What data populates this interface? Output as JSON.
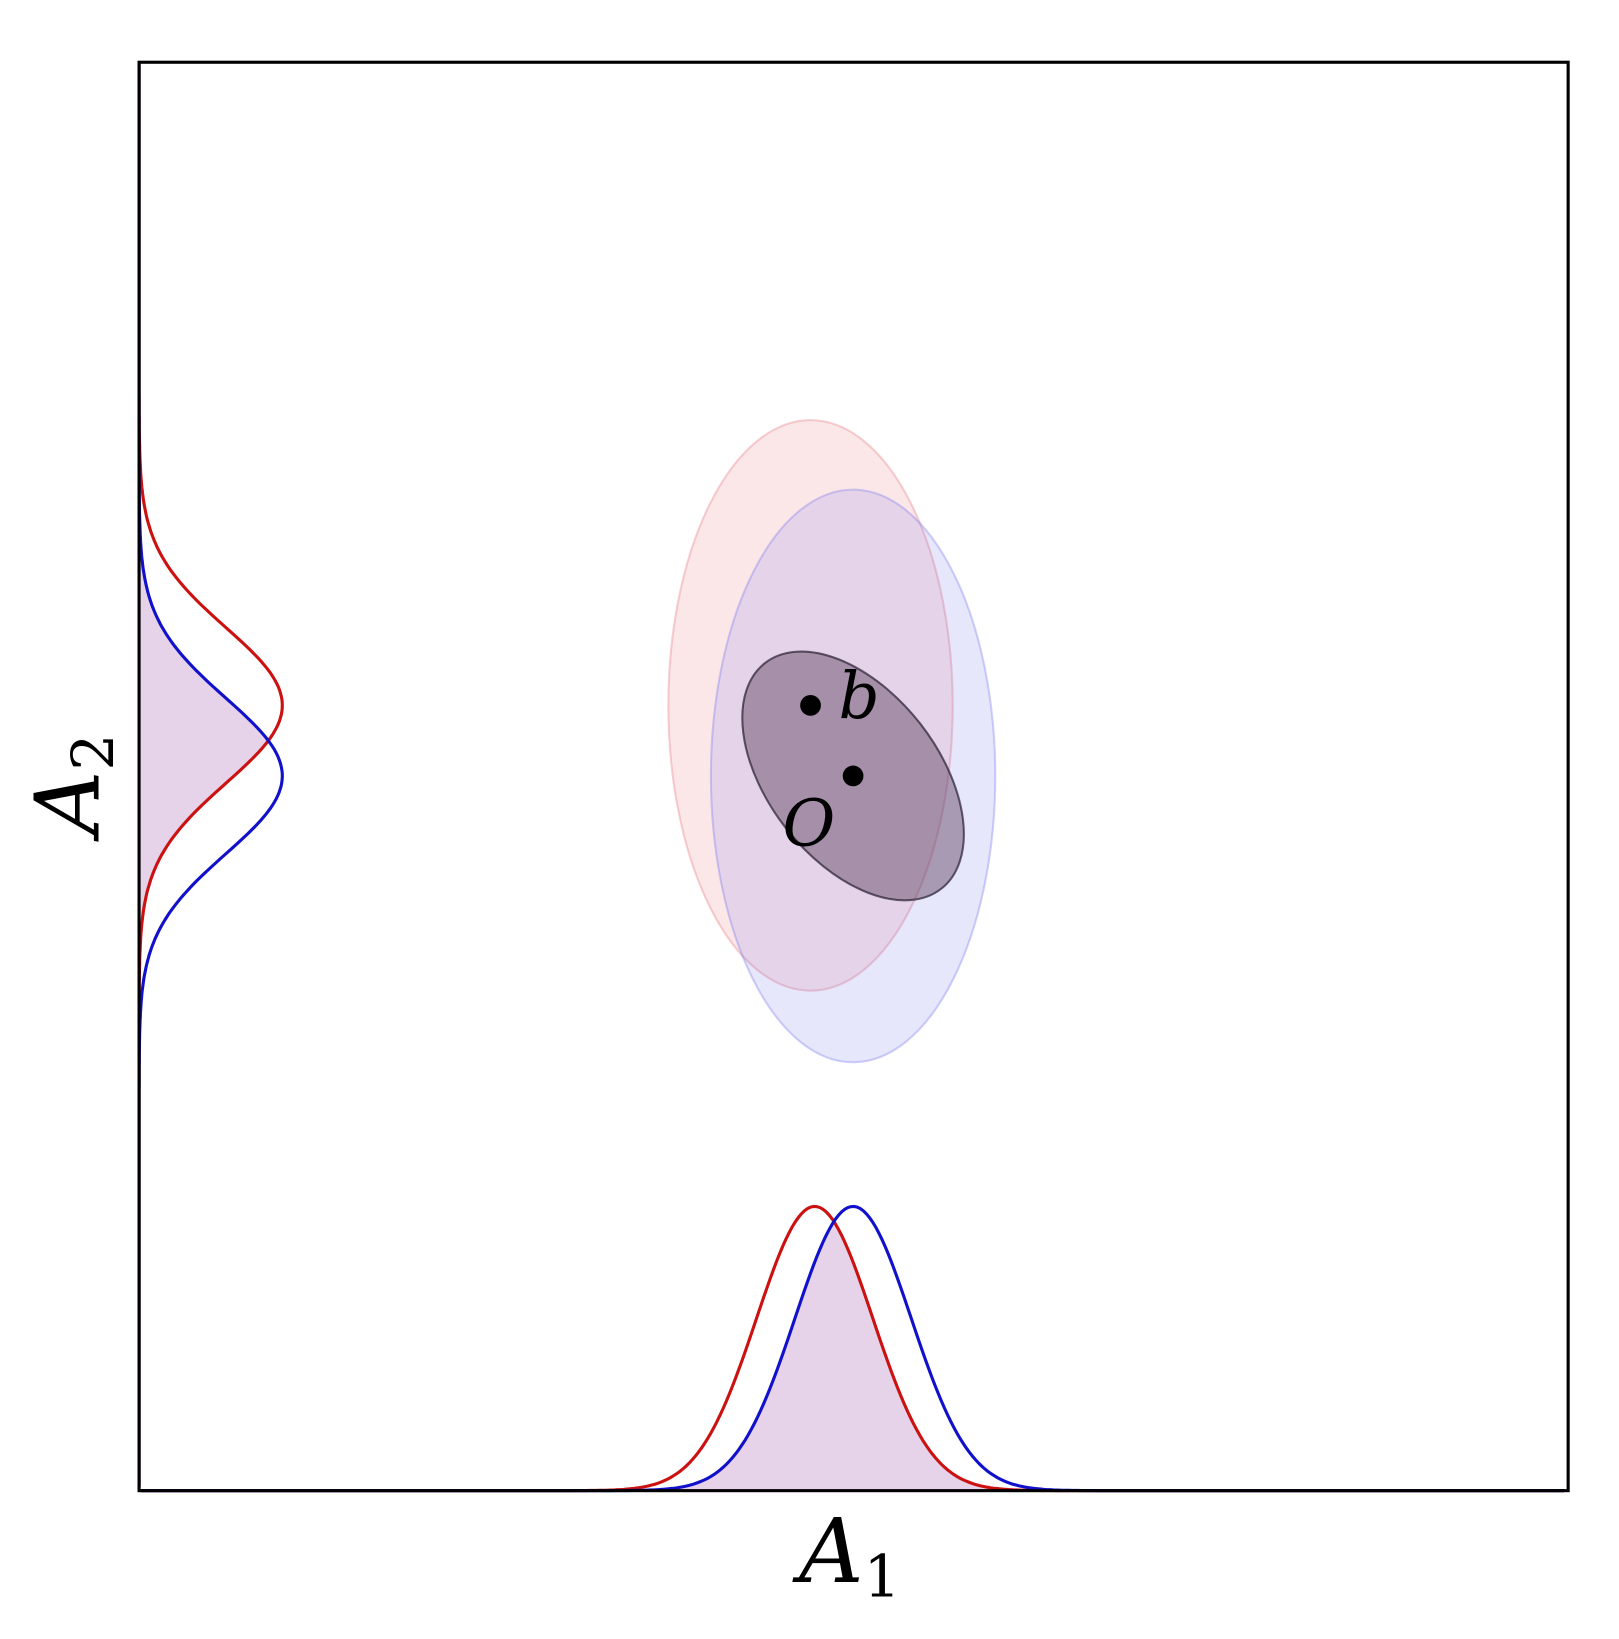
{
  "x_axis_label": {
    "symbol": "A",
    "subscript": "1"
  },
  "y_axis_label": {
    "symbol": "A",
    "subscript": "2"
  },
  "points": [
    {
      "label": "b"
    },
    {
      "label": "O"
    }
  ]
}
